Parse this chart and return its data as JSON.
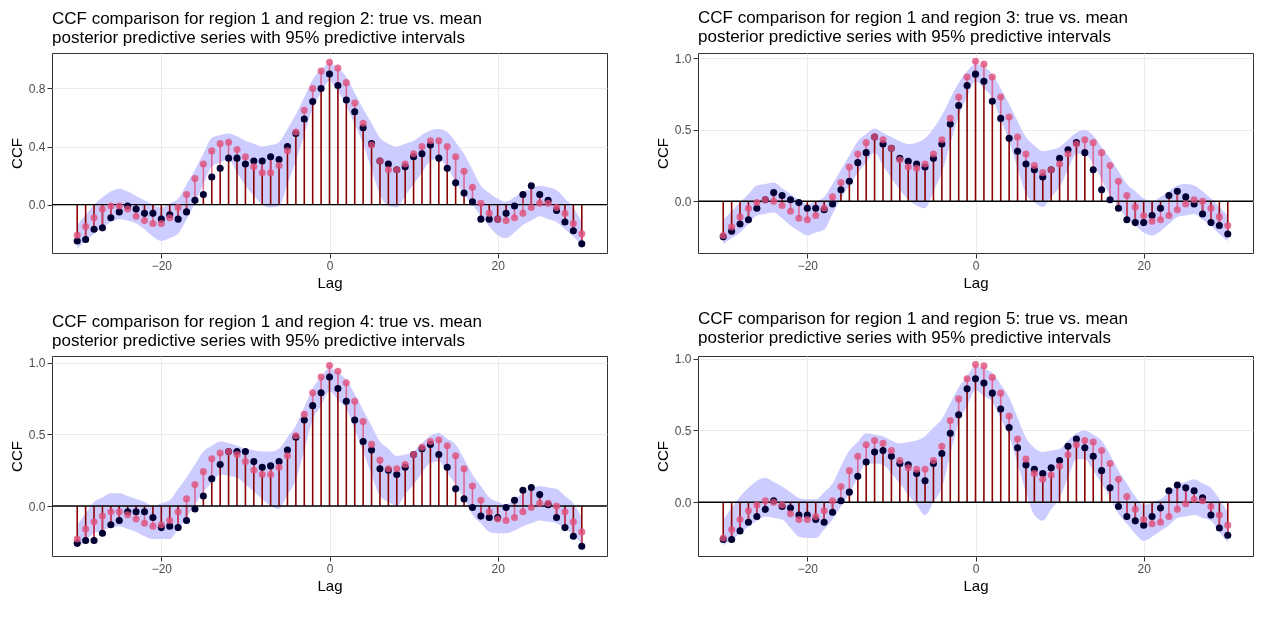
{
  "chart_data": [
    {
      "type": "lollipop",
      "title": "CCF comparison for region 1 and region 2: true vs. mean\n posterior predictive series with 95% predictive intervals",
      "xlabel": "Lag",
      "ylabel": "CCF",
      "xlim": [
        -33,
        33
      ],
      "xticks": [
        -20,
        0,
        20
      ],
      "ylim": [
        -0.333,
        1.044
      ],
      "yticks": [
        {
          "value": 0,
          "label": "0.0"
        },
        {
          "value": 0.4,
          "label": "0.4"
        },
        {
          "value": 0.8,
          "label": "0.8"
        }
      ],
      "grid": true,
      "x": [
        -30,
        -29,
        -28,
        -27,
        -26,
        -25,
        -24,
        -23,
        -22,
        -21,
        -20,
        -19,
        -18,
        -17,
        -16,
        -15,
        -14,
        -13,
        -12,
        -11,
        -10,
        -9,
        -8,
        -7,
        -6,
        -5,
        -4,
        -3,
        -2,
        -1,
        0,
        1,
        2,
        3,
        4,
        5,
        6,
        7,
        8,
        9,
        10,
        11,
        12,
        13,
        14,
        15,
        16,
        17,
        18,
        19,
        20,
        21,
        22,
        23,
        24,
        25,
        26,
        27,
        28,
        29,
        30
      ],
      "ref_lines": [
        {
          "axis": "y",
          "value": 0,
          "color": "#000000"
        }
      ],
      "series": [
        {
          "type": "lollipop",
          "color": "#000033",
          "values": [
            -0.25,
            -0.24,
            -0.17,
            -0.16,
            -0.09,
            -0.05,
            -0.01,
            -0.03,
            -0.06,
            -0.06,
            -0.1,
            -0.07,
            -0.1,
            -0.05,
            0.03,
            0.07,
            0.19,
            0.25,
            0.32,
            0.32,
            0.28,
            0.3,
            0.3,
            0.33,
            0.31,
            0.4,
            0.49,
            0.59,
            0.71,
            0.8,
            0.9,
            0.82,
            0.72,
            0.64,
            0.53,
            0.42,
            0.3,
            0.28,
            0.24,
            0.26,
            0.33,
            0.35,
            0.41,
            0.32,
            0.25,
            0.15,
            0.08,
            0.02,
            -0.1,
            -0.1,
            -0.1,
            -0.06,
            -0.01,
            0.07,
            0.13,
            0.07,
            0.03,
            -0.04,
            -0.12,
            -0.18,
            -0.27
          ]
        },
        {
          "type": "scatter",
          "color": "#e0507a",
          "values": [
            -0.21,
            -0.15,
            -0.09,
            -0.03,
            -0.01,
            -0.01,
            -0.03,
            -0.08,
            -0.11,
            -0.13,
            -0.13,
            -0.09,
            -0.02,
            0.07,
            0.18,
            0.28,
            0.37,
            0.42,
            0.43,
            0.38,
            0.33,
            0.26,
            0.22,
            0.22,
            0.27,
            0.37,
            0.5,
            0.65,
            0.8,
            0.92,
            0.98,
            0.94,
            0.84,
            0.7,
            0.56,
            0.41,
            0.3,
            0.24,
            0.24,
            0.28,
            0.35,
            0.4,
            0.44,
            0.44,
            0.4,
            0.33,
            0.23,
            0.12,
            0.01,
            -0.06,
            -0.1,
            -0.11,
            -0.09,
            -0.06,
            -0.02,
            0.01,
            0.01,
            -0.02,
            -0.06,
            -0.13,
            -0.2
          ],
          "upper": [
            -0.14,
            -0.07,
            0.0,
            0.05,
            0.09,
            0.11,
            0.09,
            0.06,
            0.03,
            0.0,
            -0.02,
            0.01,
            0.04,
            0.14,
            0.24,
            0.35,
            0.46,
            0.48,
            0.49,
            0.47,
            0.44,
            0.42,
            0.4,
            0.41,
            0.43,
            0.52,
            0.62,
            0.74,
            0.86,
            0.93,
            0.97,
            0.94,
            0.88,
            0.77,
            0.66,
            0.56,
            0.46,
            0.42,
            0.4,
            0.42,
            0.44,
            0.48,
            0.51,
            0.52,
            0.5,
            0.43,
            0.35,
            0.24,
            0.13,
            0.08,
            0.04,
            0.02,
            0.05,
            0.09,
            0.11,
            0.13,
            0.12,
            0.1,
            0.04,
            -0.02,
            -0.12
          ],
          "lower": [
            -0.3,
            -0.25,
            -0.2,
            -0.16,
            -0.12,
            -0.1,
            -0.11,
            -0.13,
            -0.17,
            -0.22,
            -0.25,
            -0.23,
            -0.2,
            -0.1,
            0.01,
            0.14,
            0.26,
            0.29,
            0.31,
            0.22,
            0.13,
            0.06,
            0.0,
            -0.02,
            -0.01,
            0.14,
            0.3,
            0.48,
            0.66,
            0.77,
            0.85,
            0.78,
            0.68,
            0.55,
            0.42,
            0.24,
            0.07,
            -0.01,
            -0.02,
            0.06,
            0.14,
            0.22,
            0.3,
            0.32,
            0.25,
            0.16,
            0.07,
            0.0,
            -0.08,
            -0.15,
            -0.21,
            -0.23,
            -0.19,
            -0.14,
            -0.11,
            -0.08,
            -0.1,
            -0.12,
            -0.17,
            -0.22,
            -0.28
          ]
        }
      ]
    },
    {
      "type": "lollipop",
      "title": "CCF comparison for region 1 and region 3: true vs. mean\n posterior predictive series with 95% predictive intervals",
      "xlabel": "Lag",
      "ylabel": "CCF",
      "xlim": [
        -33,
        33
      ],
      "xticks": [
        -20,
        0,
        20
      ],
      "ylim": [
        -0.363,
        1.038
      ],
      "yticks": [
        {
          "value": 0,
          "label": "0.0"
        },
        {
          "value": 0.5,
          "label": "0.5"
        },
        {
          "value": 1,
          "label": "1.0"
        }
      ],
      "grid": true,
      "x": [
        -30,
        -29,
        -28,
        -27,
        -26,
        -25,
        -24,
        -23,
        -22,
        -21,
        -20,
        -19,
        -18,
        -17,
        -16,
        -15,
        -14,
        -13,
        -12,
        -11,
        -10,
        -9,
        -8,
        -7,
        -6,
        -5,
        -4,
        -3,
        -2,
        -1,
        0,
        1,
        2,
        3,
        4,
        5,
        6,
        7,
        8,
        9,
        10,
        11,
        12,
        13,
        14,
        15,
        16,
        17,
        18,
        19,
        20,
        21,
        22,
        23,
        24,
        25,
        26,
        27,
        28,
        29,
        30
      ],
      "ref_lines": [
        {
          "axis": "y",
          "value": 0,
          "color": "#000000"
        }
      ],
      "series": [
        {
          "type": "lollipop",
          "color": "#000033",
          "values": [
            -0.25,
            -0.21,
            -0.16,
            -0.13,
            -0.05,
            0.01,
            0.06,
            0.04,
            0.01,
            -0.01,
            -0.05,
            -0.05,
            -0.06,
            -0.02,
            0.08,
            0.14,
            0.27,
            0.34,
            0.45,
            0.4,
            0.37,
            0.3,
            0.28,
            0.26,
            0.24,
            0.3,
            0.4,
            0.54,
            0.67,
            0.81,
            0.89,
            0.84,
            0.7,
            0.58,
            0.44,
            0.35,
            0.26,
            0.22,
            0.17,
            0.22,
            0.3,
            0.36,
            0.41,
            0.34,
            0.22,
            0.08,
            0.01,
            -0.05,
            -0.13,
            -0.15,
            -0.15,
            -0.1,
            -0.05,
            0.04,
            0.07,
            0.03,
            -0.02,
            -0.09,
            -0.15,
            -0.17,
            -0.23
          ]
        },
        {
          "type": "scatter",
          "color": "#e0507a",
          "values": [
            -0.24,
            -0.18,
            -0.11,
            -0.05,
            -0.01,
            0.01,
            0.0,
            -0.03,
            -0.07,
            -0.12,
            -0.13,
            -0.1,
            -0.05,
            0.03,
            0.13,
            0.24,
            0.33,
            0.41,
            0.45,
            0.43,
            0.37,
            0.29,
            0.24,
            0.23,
            0.26,
            0.33,
            0.43,
            0.58,
            0.73,
            0.87,
            0.98,
            0.96,
            0.87,
            0.73,
            0.59,
            0.45,
            0.33,
            0.25,
            0.2,
            0.22,
            0.26,
            0.33,
            0.4,
            0.43,
            0.41,
            0.34,
            0.25,
            0.14,
            0.04,
            -0.04,
            -0.1,
            -0.14,
            -0.13,
            -0.1,
            -0.06,
            -0.02,
            0.01,
            0.0,
            -0.05,
            -0.11,
            -0.17
          ],
          "upper": [
            -0.13,
            -0.07,
            -0.01,
            0.05,
            0.11,
            0.12,
            0.13,
            0.09,
            0.05,
            0.01,
            -0.02,
            0.0,
            0.03,
            0.12,
            0.22,
            0.32,
            0.42,
            0.47,
            0.51,
            0.48,
            0.45,
            0.42,
            0.4,
            0.41,
            0.44,
            0.51,
            0.6,
            0.72,
            0.83,
            0.91,
            0.96,
            0.94,
            0.89,
            0.79,
            0.68,
            0.56,
            0.45,
            0.39,
            0.35,
            0.36,
            0.38,
            0.43,
            0.48,
            0.5,
            0.46,
            0.38,
            0.3,
            0.21,
            0.12,
            0.07,
            0.02,
            0.0,
            0.03,
            0.07,
            0.11,
            0.12,
            0.11,
            0.07,
            0.02,
            -0.04,
            -0.1
          ],
          "lower": [
            -0.3,
            -0.26,
            -0.22,
            -0.16,
            -0.1,
            -0.09,
            -0.08,
            -0.12,
            -0.17,
            -0.21,
            -0.24,
            -0.22,
            -0.2,
            -0.09,
            0.02,
            0.11,
            0.2,
            0.27,
            0.34,
            0.25,
            0.16,
            0.08,
            0.01,
            -0.03,
            -0.05,
            0.07,
            0.2,
            0.4,
            0.6,
            0.73,
            0.84,
            0.79,
            0.72,
            0.57,
            0.42,
            0.23,
            0.05,
            -0.01,
            -0.04,
            0.03,
            0.1,
            0.22,
            0.33,
            0.33,
            0.26,
            0.15,
            0.04,
            -0.04,
            -0.12,
            -0.17,
            -0.22,
            -0.24,
            -0.21,
            -0.16,
            -0.11,
            -0.1,
            -0.09,
            -0.13,
            -0.17,
            -0.23,
            -0.28
          ]
        }
      ]
    },
    {
      "type": "lollipop",
      "title": "CCF comparison for region 1 and region 4: true vs. mean\n posterior predictive series with 95% predictive intervals",
      "xlabel": "Lag",
      "ylabel": "CCF",
      "xlim": [
        -33,
        33
      ],
      "xticks": [
        -20,
        0,
        20
      ],
      "ylim": [
        -0.348,
        1.046
      ],
      "yticks": [
        {
          "value": 0,
          "label": "0.0"
        },
        {
          "value": 0.5,
          "label": "0.5"
        },
        {
          "value": 1,
          "label": "1.0"
        }
      ],
      "grid": true,
      "x": [
        -30,
        -29,
        -28,
        -27,
        -26,
        -25,
        -24,
        -23,
        -22,
        -21,
        -20,
        -19,
        -18,
        -17,
        -16,
        -15,
        -14,
        -13,
        -12,
        -11,
        -10,
        -9,
        -8,
        -7,
        -6,
        -5,
        -4,
        -3,
        -2,
        -1,
        0,
        1,
        2,
        3,
        4,
        5,
        6,
        7,
        8,
        9,
        10,
        11,
        12,
        13,
        14,
        15,
        16,
        17,
        18,
        19,
        20,
        21,
        22,
        23,
        24,
        25,
        26,
        27,
        28,
        29,
        30
      ],
      "ref_lines": [
        {
          "axis": "y",
          "value": 0,
          "color": "#000000"
        }
      ],
      "series": [
        {
          "type": "lollipop",
          "color": "#000033",
          "values": [
            -0.26,
            -0.24,
            -0.24,
            -0.19,
            -0.13,
            -0.1,
            -0.04,
            -0.04,
            -0.04,
            -0.08,
            -0.15,
            -0.14,
            -0.15,
            -0.1,
            -0.02,
            0.07,
            0.19,
            0.29,
            0.38,
            0.38,
            0.38,
            0.31,
            0.27,
            0.28,
            0.31,
            0.39,
            0.48,
            0.6,
            0.7,
            0.79,
            0.9,
            0.82,
            0.73,
            0.6,
            0.45,
            0.39,
            0.26,
            0.25,
            0.22,
            0.27,
            0.36,
            0.4,
            0.43,
            0.36,
            0.27,
            0.12,
            0.05,
            -0.01,
            -0.07,
            -0.08,
            -0.08,
            -0.01,
            0.04,
            0.11,
            0.13,
            0.08,
            0.01,
            -0.08,
            -0.15,
            -0.21,
            -0.28
          ]
        },
        {
          "type": "scatter",
          "color": "#e0507a",
          "values": [
            -0.23,
            -0.16,
            -0.11,
            -0.07,
            -0.04,
            -0.04,
            -0.06,
            -0.09,
            -0.12,
            -0.14,
            -0.13,
            -0.1,
            -0.04,
            0.05,
            0.15,
            0.24,
            0.33,
            0.37,
            0.38,
            0.36,
            0.31,
            0.25,
            0.22,
            0.22,
            0.27,
            0.35,
            0.49,
            0.64,
            0.79,
            0.9,
            0.98,
            0.94,
            0.86,
            0.73,
            0.59,
            0.43,
            0.32,
            0.26,
            0.26,
            0.29,
            0.36,
            0.41,
            0.45,
            0.46,
            0.42,
            0.35,
            0.26,
            0.14,
            0.04,
            -0.04,
            -0.09,
            -0.1,
            -0.08,
            -0.04,
            -0.01,
            0.02,
            0.02,
            0.0,
            -0.04,
            -0.11,
            -0.18
          ],
          "upper": [
            -0.13,
            -0.05,
            0.03,
            0.06,
            0.09,
            0.09,
            0.07,
            0.05,
            0.03,
            0.0,
            0.02,
            0.04,
            0.12,
            0.2,
            0.29,
            0.38,
            0.42,
            0.45,
            0.44,
            0.42,
            0.4,
            0.39,
            0.38,
            0.38,
            0.4,
            0.48,
            0.56,
            0.69,
            0.82,
            0.9,
            0.96,
            0.93,
            0.88,
            0.78,
            0.67,
            0.56,
            0.45,
            0.4,
            0.35,
            0.36,
            0.38,
            0.44,
            0.49,
            0.51,
            0.47,
            0.43,
            0.33,
            0.22,
            0.14,
            0.06,
            0.03,
            0.01,
            0.05,
            0.09,
            0.12,
            0.14,
            0.13,
            0.12,
            0.07,
            0.02,
            -0.08
          ],
          "lower": [
            -0.29,
            -0.24,
            -0.19,
            -0.17,
            -0.15,
            -0.14,
            -0.16,
            -0.18,
            -0.21,
            -0.23,
            -0.23,
            -0.23,
            -0.16,
            -0.08,
            0.01,
            0.1,
            0.16,
            0.22,
            0.21,
            0.2,
            0.15,
            0.1,
            0.05,
            0.0,
            -0.02,
            0.08,
            0.18,
            0.39,
            0.6,
            0.7,
            0.8,
            0.74,
            0.68,
            0.53,
            0.38,
            0.22,
            0.07,
            0.03,
            0.0,
            0.08,
            0.15,
            0.23,
            0.3,
            0.31,
            0.23,
            0.15,
            0.05,
            -0.06,
            -0.12,
            -0.18,
            -0.19,
            -0.19,
            -0.17,
            -0.14,
            -0.12,
            -0.1,
            -0.11,
            -0.12,
            -0.16,
            -0.2,
            -0.27
          ]
        }
      ]
    },
    {
      "type": "lollipop",
      "title": "CCF comparison for region 1 and region 5: true vs. mean\n posterior predictive series with 95% predictive intervals",
      "xlabel": "Lag",
      "ylabel": "CCF",
      "xlim": [
        -33,
        33
      ],
      "xticks": [
        -20,
        0,
        20
      ],
      "ylim": [
        -0.375,
        1.019
      ],
      "yticks": [
        {
          "value": 0,
          "label": "0.0"
        },
        {
          "value": 0.5,
          "label": "0.5"
        },
        {
          "value": 1,
          "label": "1.0"
        }
      ],
      "grid": true,
      "x": [
        -30,
        -29,
        -28,
        -27,
        -26,
        -25,
        -24,
        -23,
        -22,
        -21,
        -20,
        -19,
        -18,
        -17,
        -16,
        -15,
        -14,
        -13,
        -12,
        -11,
        -10,
        -9,
        -8,
        -7,
        -6,
        -5,
        -4,
        -3,
        -2,
        -1,
        0,
        1,
        2,
        3,
        4,
        5,
        6,
        7,
        8,
        9,
        10,
        11,
        12,
        13,
        14,
        15,
        16,
        17,
        18,
        19,
        20,
        21,
        22,
        23,
        24,
        25,
        26,
        27,
        28,
        29,
        30
      ],
      "ref_lines": [
        {
          "axis": "y",
          "value": 0,
          "color": "#000000"
        }
      ],
      "series": [
        {
          "type": "lollipop",
          "color": "#000033",
          "values": [
            -0.26,
            -0.26,
            -0.2,
            -0.14,
            -0.1,
            -0.05,
            0.01,
            -0.03,
            -0.04,
            -0.09,
            -0.09,
            -0.12,
            -0.14,
            -0.07,
            0.01,
            0.07,
            0.18,
            0.28,
            0.35,
            0.36,
            0.32,
            0.27,
            0.26,
            0.2,
            0.15,
            0.27,
            0.34,
            0.48,
            0.61,
            0.79,
            0.86,
            0.83,
            0.76,
            0.65,
            0.52,
            0.38,
            0.26,
            0.23,
            0.2,
            0.24,
            0.29,
            0.39,
            0.44,
            0.38,
            0.32,
            0.22,
            0.1,
            -0.03,
            -0.1,
            -0.13,
            -0.16,
            -0.1,
            -0.04,
            0.08,
            0.12,
            0.1,
            0.08,
            0.03,
            -0.09,
            -0.18,
            -0.23
          ]
        },
        {
          "type": "scatter",
          "color": "#e0507a",
          "values": [
            -0.25,
            -0.19,
            -0.12,
            -0.06,
            -0.02,
            0.01,
            0.0,
            -0.02,
            -0.08,
            -0.12,
            -0.12,
            -0.1,
            -0.06,
            0.01,
            0.11,
            0.22,
            0.32,
            0.4,
            0.43,
            0.41,
            0.36,
            0.29,
            0.24,
            0.23,
            0.23,
            0.29,
            0.39,
            0.57,
            0.72,
            0.86,
            0.96,
            0.95,
            0.87,
            0.76,
            0.6,
            0.44,
            0.3,
            0.2,
            0.16,
            0.19,
            0.25,
            0.33,
            0.4,
            0.43,
            0.42,
            0.36,
            0.27,
            0.16,
            0.04,
            -0.05,
            -0.12,
            -0.15,
            -0.14,
            -0.1,
            -0.05,
            -0.01,
            0.02,
            0.01,
            -0.03,
            -0.09,
            -0.16
          ],
          "upper": [
            -0.12,
            -0.04,
            0.04,
            0.1,
            0.15,
            0.17,
            0.14,
            0.11,
            0.07,
            0.03,
            0.02,
            0.02,
            0.07,
            0.13,
            0.25,
            0.36,
            0.42,
            0.48,
            0.47,
            0.46,
            0.43,
            0.41,
            0.42,
            0.43,
            0.46,
            0.52,
            0.58,
            0.69,
            0.8,
            0.88,
            0.95,
            0.93,
            0.9,
            0.82,
            0.73,
            0.59,
            0.45,
            0.38,
            0.35,
            0.36,
            0.37,
            0.43,
            0.48,
            0.5,
            0.47,
            0.43,
            0.33,
            0.22,
            0.13,
            0.04,
            -0.02,
            0.0,
            0.02,
            0.07,
            0.12,
            0.14,
            0.16,
            0.13,
            0.1,
            0.02,
            -0.07
          ],
          "lower": [
            -0.3,
            -0.26,
            -0.22,
            -0.17,
            -0.13,
            -0.1,
            -0.11,
            -0.12,
            -0.18,
            -0.24,
            -0.25,
            -0.25,
            -0.19,
            -0.12,
            -0.03,
            0.06,
            0.17,
            0.27,
            0.27,
            0.26,
            0.2,
            0.13,
            0.05,
            -0.02,
            -0.09,
            0.0,
            0.1,
            0.33,
            0.56,
            0.67,
            0.78,
            0.74,
            0.7,
            0.58,
            0.46,
            0.27,
            0.07,
            -0.09,
            -0.13,
            -0.05,
            0.03,
            0.17,
            0.3,
            0.3,
            0.22,
            0.13,
            0.03,
            -0.08,
            -0.15,
            -0.22,
            -0.27,
            -0.24,
            -0.2,
            -0.16,
            -0.11,
            -0.1,
            -0.09,
            -0.11,
            -0.13,
            -0.21,
            -0.28
          ]
        }
      ]
    }
  ]
}
